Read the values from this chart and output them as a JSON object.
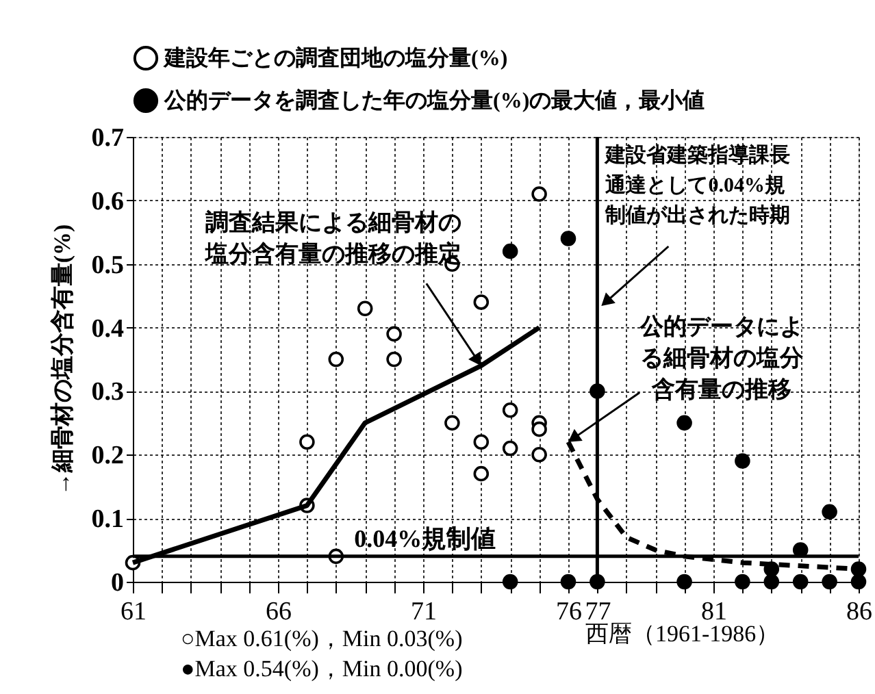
{
  "chart_data": {
    "type": "scatter",
    "xlabel": "西暦（1961-1986）",
    "ylabel": "→細骨材の塩分含有量(%)",
    "xlim": [
      61,
      86
    ],
    "ylim": [
      0,
      0.7
    ],
    "xticks": [
      61,
      {
        "value": 62,
        "label": null
      },
      {
        "value": 63,
        "label": null
      },
      {
        "value": 64,
        "label": null
      },
      {
        "value": 65,
        "label": null
      },
      66,
      {
        "value": 67,
        "label": null
      },
      {
        "value": 68,
        "label": null
      },
      {
        "value": 69,
        "label": null
      },
      {
        "value": 70,
        "label": null
      },
      71,
      {
        "value": 72,
        "label": null
      },
      {
        "value": 73,
        "label": null
      },
      {
        "value": 74,
        "label": null
      },
      {
        "value": 75,
        "label": null
      },
      76,
      77,
      {
        "value": 78,
        "label": null
      },
      {
        "value": 79,
        "label": null
      },
      {
        "value": 80,
        "label": null
      },
      81,
      {
        "value": 82,
        "label": null
      },
      {
        "value": 83,
        "label": null
      },
      {
        "value": 84,
        "label": null
      },
      {
        "value": 85,
        "label": null
      },
      86
    ],
    "yticks": [
      0,
      0.1,
      0.2,
      0.3,
      0.4,
      0.5,
      0.6,
      0.7
    ],
    "grid": true,
    "legend": "top",
    "series": [
      {
        "name": "建設年ごとの調査団地の塩分量(%)",
        "type": "scatter",
        "marker": "circle",
        "color": "#ffffff",
        "x": [
          61,
          67,
          67,
          68,
          68,
          69,
          70,
          70,
          72,
          72,
          73,
          73,
          73,
          74,
          74,
          75,
          75,
          75,
          75
        ],
        "values": [
          0.03,
          0.22,
          0.12,
          0.35,
          0.04,
          0.43,
          0.39,
          0.35,
          0.5,
          0.25,
          0.44,
          0.22,
          0.17,
          0.27,
          0.21,
          0.61,
          0.25,
          0.24,
          0.2
        ]
      },
      {
        "name": "公的データを調査した年の塩分量(%)の最大値，最小値",
        "type": "scatter",
        "marker": "circle",
        "color": "#000000",
        "x": [
          74,
          74,
          76,
          76,
          77,
          77,
          80,
          80,
          82,
          82,
          83,
          83,
          84,
          84,
          85,
          85,
          86,
          86
        ],
        "values": [
          0.52,
          0,
          0.54,
          0,
          0.3,
          0,
          0.25,
          0,
          0.19,
          0,
          0.02,
          0,
          0.05,
          0,
          0.11,
          0,
          0.02,
          0
        ]
      },
      {
        "type": "line",
        "color": "#000000",
        "line_style": "solid",
        "x": [
          61,
          67,
          69,
          73,
          75
        ],
        "values": [
          0.03,
          0.12,
          0.25,
          0.34,
          0.4
        ]
      },
      {
        "type": "line",
        "color": "#000000",
        "line_style": "dashed",
        "x": [
          76,
          77,
          78,
          79,
          80,
          82,
          86
        ],
        "values": [
          0.22,
          0.13,
          0.07,
          0.05,
          0.04,
          0.03,
          0.02
        ]
      }
    ],
    "ref_lines": [
      {
        "axis": "y",
        "value": 0.04,
        "label": "0.04%規制値",
        "color": "#000000"
      },
      {
        "axis": "x",
        "value": 77,
        "label": "建設省建築指導課長通達として0.04%規制値が出された時期",
        "color": "#000000"
      }
    ],
    "annotations": [
      {
        "text": "調査結果による細骨材の塩分含有量の推移の推定",
        "x": 73,
        "y": 0.34
      },
      {
        "text": "公的データによる細骨材の塩分含有量の推移",
        "x": 76,
        "y": 0.22
      },
      "○Max 0.61(%)，Min 0.03(%)",
      "●Max 0.54(%)，Min 0.00(%)"
    ]
  }
}
